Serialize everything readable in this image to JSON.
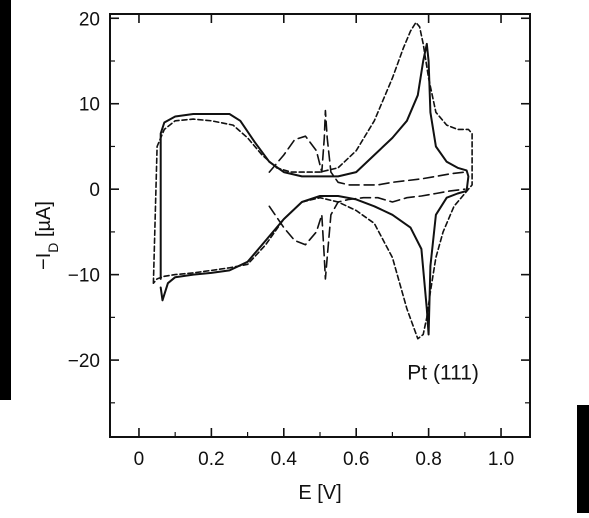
{
  "chart_data": {
    "type": "line",
    "xlabel": "E [V]",
    "ylabel": "−I_D [µA]",
    "ylabel_main": "−I",
    "ylabel_sub": "D",
    "ylabel_unit": " [µA]",
    "annotation": "Pt (111)",
    "xlim": [
      -0.08,
      1.08
    ],
    "ylim": [
      -29,
      20.5
    ],
    "x_ticks": [
      0,
      0.2,
      0.4,
      0.6,
      0.8,
      1.0
    ],
    "x_tick_labels": [
      "0",
      "0.2",
      "0.4",
      "0.6",
      "0.8",
      "1.0"
    ],
    "y_ticks": [
      20,
      10,
      0,
      -10,
      -20
    ],
    "y_tick_labels": [
      "20",
      "10",
      "0",
      "−10",
      "−20"
    ],
    "grid": false,
    "series": [
      {
        "style": "solid",
        "x": [
          0.06,
          0.06,
          0.07,
          0.1,
          0.15,
          0.2,
          0.25,
          0.28,
          0.32,
          0.36,
          0.4,
          0.45,
          0.5,
          0.55,
          0.6,
          0.65,
          0.7,
          0.74,
          0.77,
          0.785,
          0.795,
          0.8,
          0.805,
          0.82,
          0.85,
          0.88,
          0.905,
          0.91,
          0.905,
          0.88,
          0.85,
          0.82,
          0.805,
          0.8,
          0.795,
          0.78,
          0.75,
          0.7,
          0.65,
          0.6,
          0.55,
          0.5,
          0.45,
          0.4,
          0.35,
          0.3,
          0.25,
          0.2,
          0.15,
          0.1,
          0.08,
          0.065,
          0.06
        ],
        "y": [
          -10.5,
          6.5,
          7.8,
          8.5,
          8.8,
          8.8,
          8.8,
          8.0,
          5.5,
          3.2,
          2.0,
          1.5,
          1.5,
          1.5,
          2.0,
          4.0,
          6.0,
          8.0,
          11.0,
          15.0,
          17.0,
          15.0,
          9.0,
          5.0,
          3.2,
          2.5,
          2.2,
          1.5,
          -0.2,
          -0.5,
          -1.0,
          -3.0,
          -9.0,
          -17.0,
          -14.0,
          -7.0,
          -4.5,
          -3.0,
          -2.0,
          -1.2,
          -0.8,
          -0.8,
          -1.5,
          -3.5,
          -6.0,
          -8.5,
          -9.5,
          -9.8,
          -10.0,
          -10.3,
          -11.0,
          -13.0,
          -11.5
        ]
      },
      {
        "style": "dashed",
        "x": [
          0.04,
          0.05,
          0.07,
          0.1,
          0.15,
          0.2,
          0.26,
          0.3,
          0.34,
          0.38,
          0.42,
          0.46,
          0.5,
          0.55,
          0.6,
          0.65,
          0.7,
          0.73,
          0.75,
          0.765,
          0.775,
          0.785,
          0.8,
          0.82,
          0.85,
          0.88,
          0.91,
          0.92,
          0.92,
          0.9,
          0.87,
          0.84,
          0.82,
          0.805,
          0.795,
          0.785,
          0.77,
          0.74,
          0.7,
          0.65,
          0.6,
          0.55,
          0.5,
          0.45,
          0.4,
          0.35,
          0.3,
          0.25,
          0.2,
          0.15,
          0.1,
          0.07,
          0.05,
          0.04
        ],
        "y": [
          -11.0,
          5.0,
          7.0,
          8.0,
          8.2,
          8.0,
          7.5,
          6.0,
          4.0,
          2.5,
          2.0,
          2.0,
          2.0,
          2.5,
          4.5,
          8.0,
          13.0,
          16.5,
          18.5,
          19.5,
          19.0,
          17.0,
          13.0,
          9.0,
          7.5,
          7.0,
          7.0,
          6.5,
          0.5,
          -0.5,
          -2.0,
          -5.0,
          -8.0,
          -12.0,
          -15.0,
          -17.0,
          -17.5,
          -14.0,
          -8.0,
          -4.0,
          -2.5,
          -1.5,
          -1.0,
          -1.5,
          -3.5,
          -6.5,
          -8.8,
          -9.2,
          -9.5,
          -9.8,
          -10.0,
          -10.2,
          -10.5,
          -11.0
        ]
      },
      {
        "style": "long-dash",
        "x": [
          0.36,
          0.4,
          0.43,
          0.46,
          0.49,
          0.505,
          0.512,
          0.515,
          0.52,
          0.53,
          0.55,
          0.58,
          0.62,
          0.66,
          0.7,
          0.74,
          0.78,
          0.82,
          0.86,
          0.9
        ],
        "y": [
          2.0,
          4.0,
          5.8,
          6.2,
          4.5,
          2.0,
          6.0,
          9.2,
          6.0,
          2.0,
          0.8,
          0.5,
          0.5,
          0.5,
          0.8,
          1.0,
          1.2,
          1.5,
          1.8,
          2.0
        ]
      },
      {
        "style": "long-dash",
        "x": [
          0.36,
          0.4,
          0.43,
          0.46,
          0.49,
          0.505,
          0.512,
          0.515,
          0.52,
          0.53,
          0.55,
          0.58,
          0.62,
          0.66,
          0.7,
          0.74,
          0.78,
          0.82,
          0.86,
          0.9
        ],
        "y": [
          -2.0,
          -4.5,
          -6.0,
          -6.5,
          -5.0,
          -3.0,
          -8.0,
          -10.5,
          -8.0,
          -3.0,
          -1.5,
          -1.2,
          -1.0,
          -1.0,
          -1.5,
          -1.0,
          -0.8,
          -0.5,
          -0.2,
          0.0
        ]
      }
    ]
  }
}
